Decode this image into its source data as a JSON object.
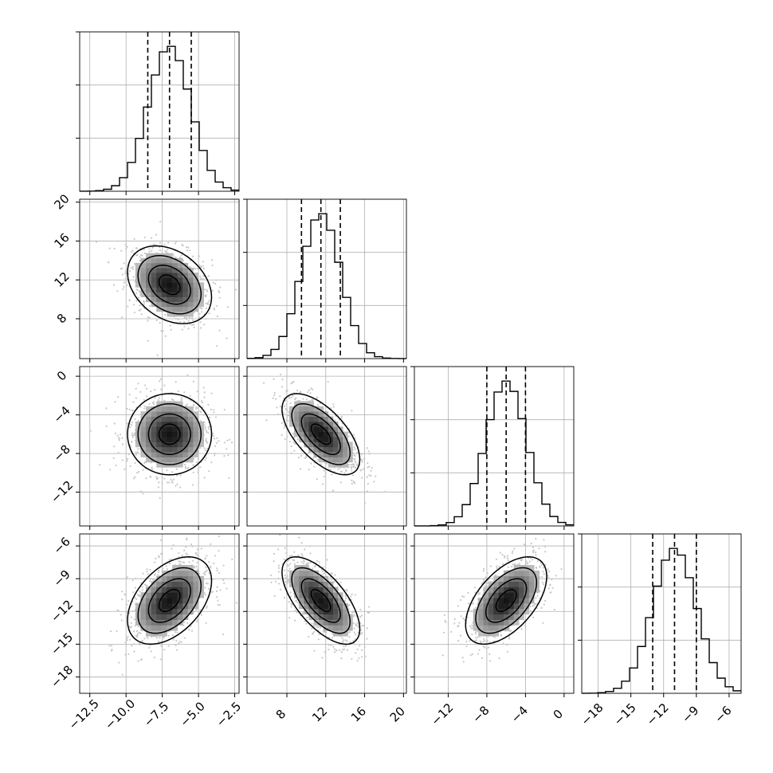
{
  "chart_data": {
    "type": "corner",
    "title": "",
    "n_params": 4,
    "parameters": [
      {
        "label": "",
        "range": [
          -13.2,
          -2.2
        ],
        "ticks": [
          -12.5,
          -10.0,
          -7.5,
          -5.0,
          -2.5
        ],
        "tick_labels": [
          "−12.5",
          "−10.0",
          "−7.5",
          "−5.0",
          "−2.5"
        ],
        "mean": -7.0,
        "std": 1.45,
        "quantiles": [
          -8.5,
          -7.0,
          -5.5
        ]
      },
      {
        "label": "",
        "range": [
          3.9,
          20.3
        ],
        "ticks": [
          8,
          12,
          16,
          20
        ],
        "tick_labels": [
          "8",
          "12",
          "16",
          "20"
        ],
        "mean": 11.5,
        "std": 2.0,
        "quantiles": [
          9.5,
          11.5,
          13.5
        ]
      },
      {
        "label": "",
        "range": [
          -15.5,
          1.0
        ],
        "ticks": [
          -12,
          -8,
          -4,
          0
        ],
        "tick_labels": [
          "−12",
          "−8",
          "−4",
          "0"
        ],
        "mean": -6.0,
        "std": 2.1,
        "quantiles": [
          -8.0,
          -6.0,
          -4.0
        ]
      },
      {
        "label": "",
        "range": [
          -19.5,
          -4.9
        ],
        "ticks": [
          -18,
          -15,
          -12,
          -9,
          -6
        ],
        "tick_labels": [
          "−18",
          "−15",
          "−12",
          "−9",
          "−6"
        ],
        "mean": -11.0,
        "std": 2.0,
        "quantiles": [
          -13.0,
          -11.0,
          -9.0
        ]
      }
    ],
    "correlations": [
      [
        1.0,
        -0.32,
        0.0,
        0.45
      ],
      [
        -0.32,
        1.0,
        -0.62,
        -0.65
      ],
      [
        0.0,
        -0.62,
        1.0,
        0.55
      ],
      [
        0.45,
        -0.65,
        0.55,
        1.0
      ]
    ],
    "histogram_bins": 20,
    "contour_levels": [
      "0.5",
      "1.0",
      "1.5",
      "2.0"
    ],
    "grid": true,
    "quantile_lines": "dashed",
    "colors": {
      "line": "#000000",
      "grid": "#b0b0b0",
      "scatter": "#c8c8c8"
    }
  }
}
